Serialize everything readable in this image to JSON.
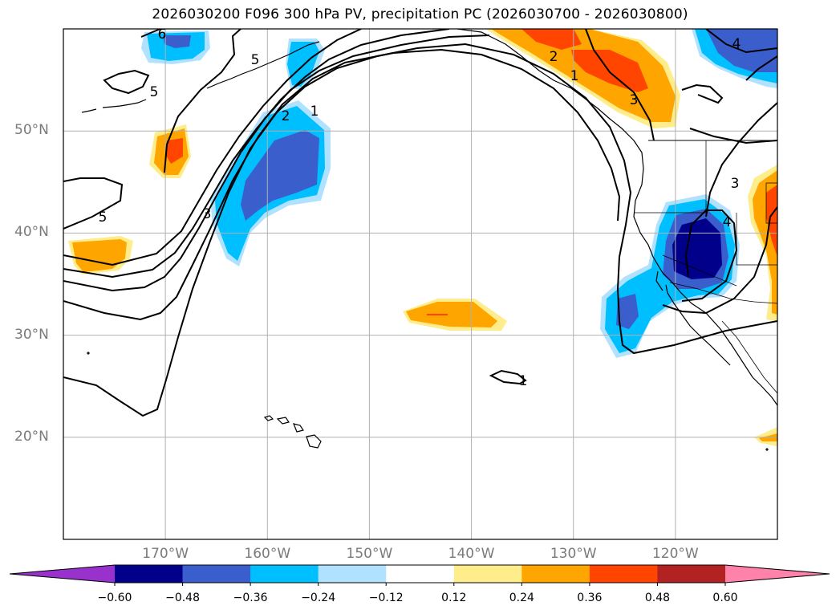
{
  "title": "2026030200 F096 300 hPa PV, precipitation PC (2026030700 - 2026030800)",
  "map": {
    "projection": "cylindrical",
    "lon_range": [
      -180,
      -110
    ],
    "lat_range": [
      10,
      60
    ],
    "lat_ticks": [
      {
        "value": 20,
        "label": "20°N"
      },
      {
        "value": 30,
        "label": "30°N"
      },
      {
        "value": 40,
        "label": "40°N"
      },
      {
        "value": 50,
        "label": "50°N"
      }
    ],
    "lon_ticks": [
      {
        "value": -170,
        "label": "170°W"
      },
      {
        "value": -160,
        "label": "160°W"
      },
      {
        "value": -150,
        "label": "150°W"
      },
      {
        "value": -140,
        "label": "140°W"
      },
      {
        "value": -130,
        "label": "130°W"
      },
      {
        "value": -120,
        "label": "120°W"
      }
    ],
    "pv_contour_labels": [
      "6",
      "5",
      "5",
      "5",
      "3",
      "2",
      "1",
      "1",
      "2",
      "3",
      "3",
      "4",
      "4",
      "1"
    ]
  },
  "colorbar": {
    "extend": "both",
    "bins": [
      {
        "color": "#9932CC",
        "range": "< -0.60"
      },
      {
        "color": "#00008B",
        "range": "-0.60 to -0.48"
      },
      {
        "color": "#3A5FCD",
        "range": "-0.48 to -0.36"
      },
      {
        "color": "#00BFFF",
        "range": "-0.36 to -0.24"
      },
      {
        "color": "#B0E2FF",
        "range": "-0.24 to -0.12"
      },
      {
        "color": "#FFFFFF",
        "range": "-0.12 to 0.12"
      },
      {
        "color": "#FFEC8B",
        "range": "0.12 to 0.24"
      },
      {
        "color": "#FFA500",
        "range": "0.24 to 0.36"
      },
      {
        "color": "#FF4500",
        "range": "0.36 to 0.48"
      },
      {
        "color": "#B22222",
        "range": "0.48 to 0.60"
      },
      {
        "color": "#FF82AB",
        "range": "> 0.60"
      }
    ],
    "tick_labels": [
      "−0.60",
      "−0.48",
      "−0.36",
      "−0.24",
      "−0.12",
      "0.12",
      "0.24",
      "0.36",
      "0.48",
      "0.60"
    ]
  }
}
